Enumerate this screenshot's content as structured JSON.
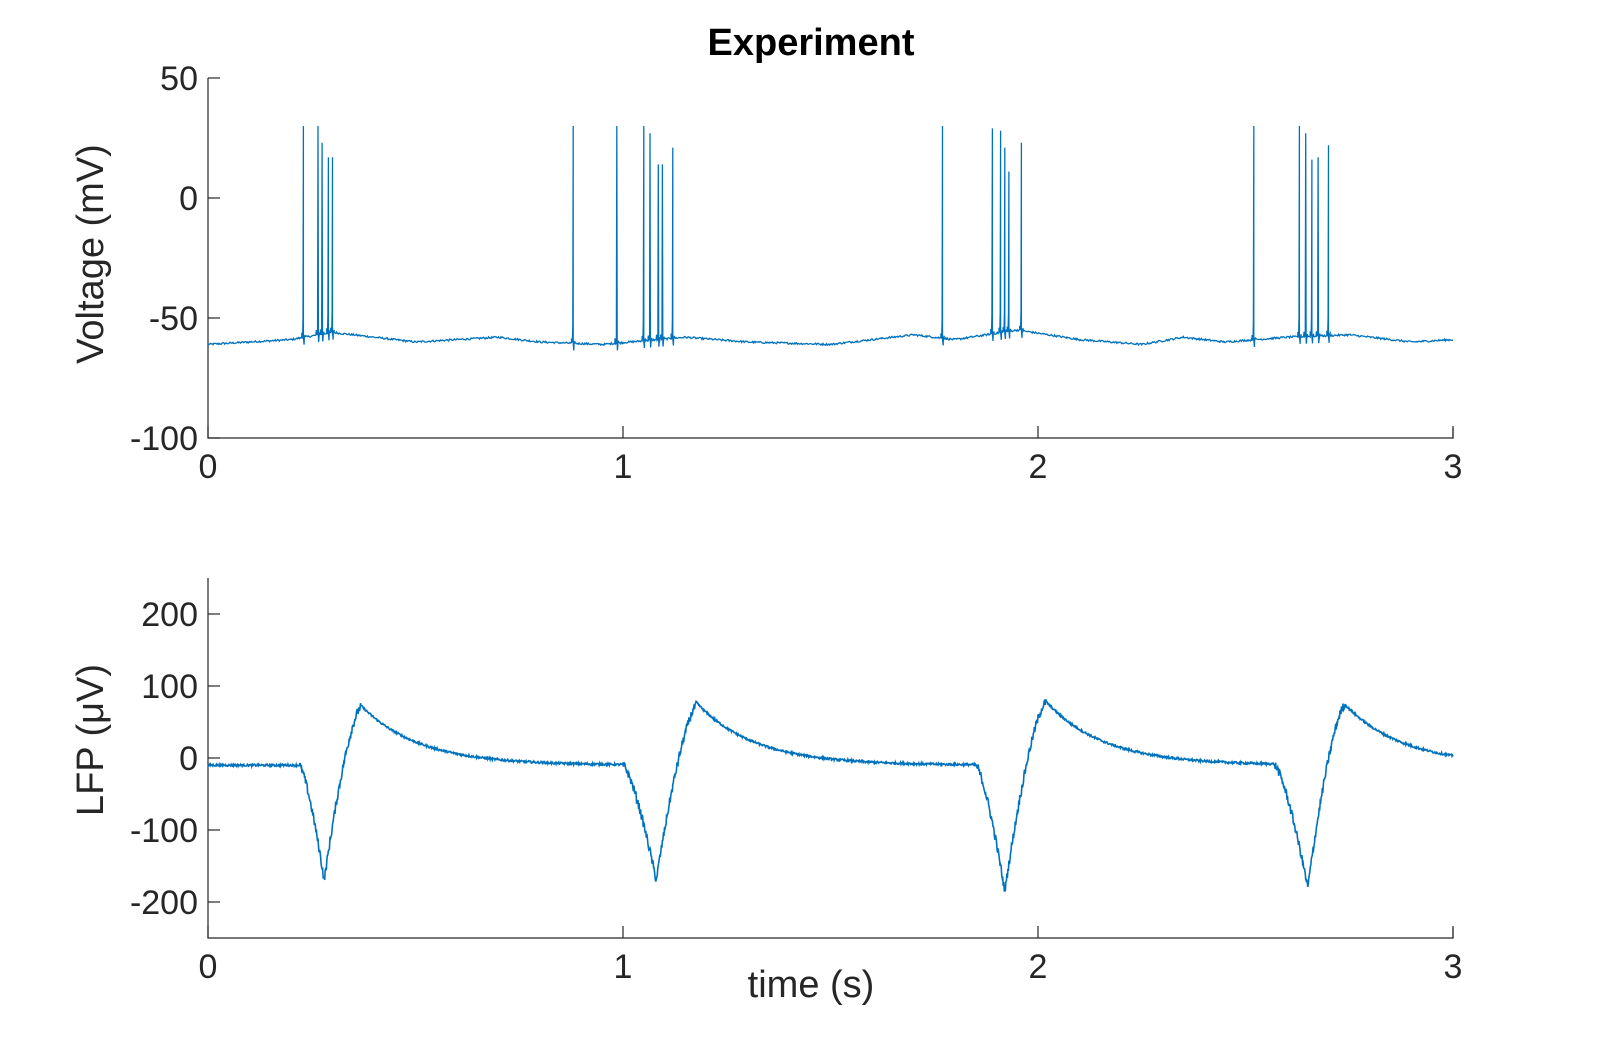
{
  "chart_data": [
    {
      "type": "line",
      "title": "Experiment",
      "xlabel": "",
      "ylabel": "Voltage (mV)",
      "xlim": [
        0,
        3
      ],
      "ylim": [
        -100,
        50
      ],
      "xticks": [
        0,
        1,
        2,
        3
      ],
      "xtick_labels": [
        "0",
        "1",
        "2",
        "3"
      ],
      "yticks": [
        50,
        0,
        -50,
        -100
      ],
      "ytick_labels": [
        "50",
        "0",
        "-50",
        "-100"
      ],
      "color": "#0072BD",
      "grid": false,
      "series": [
        {
          "baseline": [
            [
              0,
              -61
            ],
            [
              0.1,
              -60
            ],
            [
              0.2,
              -59
            ],
            [
              0.3,
              -56
            ],
            [
              0.4,
              -58
            ],
            [
              0.5,
              -60
            ],
            [
              0.6,
              -59
            ],
            [
              0.7,
              -58
            ],
            [
              0.8,
              -60
            ],
            [
              0.95,
              -61
            ],
            [
              1.15,
              -58
            ],
            [
              1.3,
              -60
            ],
            [
              1.5,
              -61
            ],
            [
              1.6,
              -59
            ],
            [
              1.7,
              -57
            ],
            [
              1.8,
              -59
            ],
            [
              1.95,
              -55
            ],
            [
              2.1,
              -59
            ],
            [
              2.25,
              -61
            ],
            [
              2.35,
              -58
            ],
            [
              2.45,
              -60
            ],
            [
              2.6,
              -58
            ],
            [
              2.75,
              -57
            ],
            [
              2.9,
              -60
            ],
            [
              3.0,
              -59
            ]
          ],
          "spikes": [
            [
              0.23,
              30
            ],
            [
              0.265,
              30
            ],
            [
              0.275,
              23
            ],
            [
              0.29,
              17
            ],
            [
              0.3,
              17
            ],
            [
              0.88,
              30
            ],
            [
              0.985,
              30
            ],
            [
              1.05,
              30
            ],
            [
              1.065,
              27
            ],
            [
              1.085,
              14
            ],
            [
              1.095,
              14
            ],
            [
              1.12,
              21
            ],
            [
              1.77,
              30
            ],
            [
              1.89,
              29
            ],
            [
              1.91,
              28
            ],
            [
              1.92,
              21
            ],
            [
              1.93,
              11
            ],
            [
              1.96,
              23
            ],
            [
              2.52,
              30
            ],
            [
              2.63,
              30
            ],
            [
              2.645,
              27
            ],
            [
              2.66,
              16
            ],
            [
              2.675,
              17
            ],
            [
              2.7,
              22
            ]
          ]
        }
      ]
    },
    {
      "type": "line",
      "title": "",
      "xlabel": "time (s)",
      "ylabel": "LFP (μV)",
      "xlim": [
        0,
        3
      ],
      "ylim": [
        -250,
        250
      ],
      "xticks": [
        0,
        1,
        2,
        3
      ],
      "xtick_labels": [
        "0",
        "1",
        "2",
        "3"
      ],
      "yticks": [
        200,
        100,
        0,
        -100,
        -200
      ],
      "ytick_labels": [
        "200",
        "100",
        "0",
        "-100",
        "-200"
      ],
      "color": "#0072BD",
      "grid": false,
      "series": [
        {
          "events": [
            {
              "onset": 0.22,
              "trough_t": 0.28,
              "trough_v": -170,
              "peak_t": 0.37,
              "peak_v": 72
            },
            {
              "onset": 1.0,
              "trough_t": 1.08,
              "trough_v": -170,
              "peak_t": 1.18,
              "peak_v": 75
            },
            {
              "onset": 1.85,
              "trough_t": 1.92,
              "trough_v": -185,
              "peak_t": 2.02,
              "peak_v": 78
            },
            {
              "onset": 2.57,
              "trough_t": 2.65,
              "trough_v": -180,
              "peak_t": 2.74,
              "peak_v": 74
            }
          ],
          "baseline_v": -10,
          "end_v": -5
        }
      ]
    }
  ]
}
